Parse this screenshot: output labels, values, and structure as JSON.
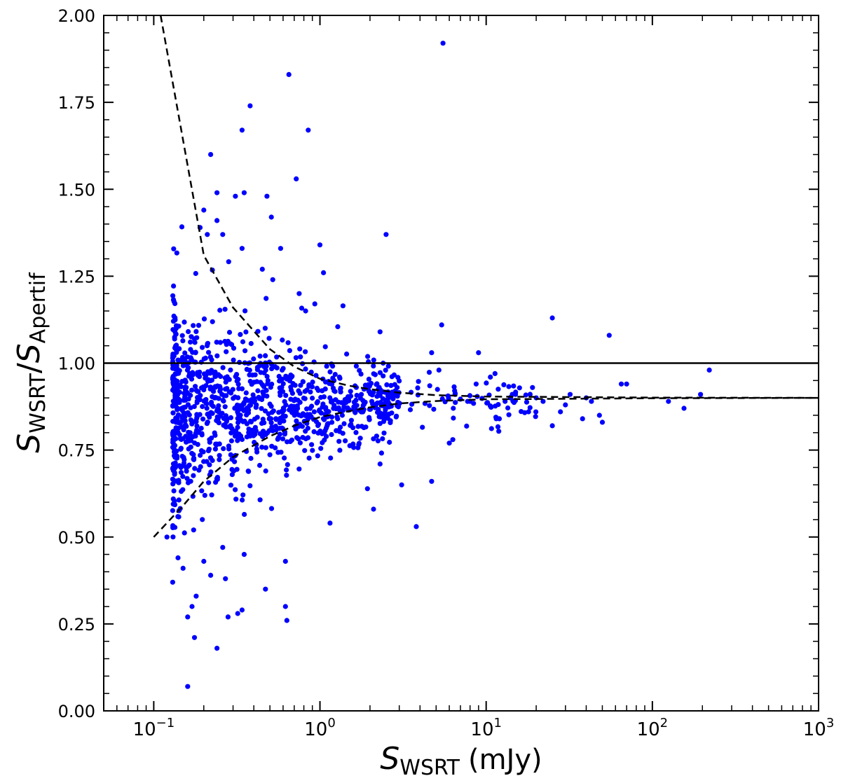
{
  "chart_data": {
    "type": "scatter",
    "title": "",
    "xscale": "log",
    "xlim": [
      0.05,
      1000
    ],
    "ylim": [
      0.0,
      2.0
    ],
    "grid": false,
    "xlabel": {
      "symbol": "S",
      "subscript": "WSRT",
      "unit": "(mJy)"
    },
    "ylabel": {
      "num_symbol": "S",
      "num_subscript": "WSRT",
      "den_symbol": "S",
      "den_subscript": "Apertif"
    },
    "x_ticks": [
      {
        "value": 0.1,
        "base": "10",
        "exp": "−1"
      },
      {
        "value": 1,
        "base": "10",
        "exp": "0"
      },
      {
        "value": 10,
        "base": "10",
        "exp": "1"
      },
      {
        "value": 100,
        "base": "10",
        "exp": "2"
      },
      {
        "value": 1000,
        "base": "10",
        "exp": "3"
      }
    ],
    "y_ticks": [
      "0.00",
      "0.25",
      "0.50",
      "0.75",
      "1.00",
      "1.25",
      "1.50",
      "1.75",
      "2.00"
    ],
    "marker_color": "#0000ff",
    "line_color": "#000000",
    "reference_line": {
      "y": 1.0
    },
    "envelope_upper": [
      [
        0.11,
        2.0
      ],
      [
        0.2,
        1.31
      ],
      [
        0.3,
        1.16
      ],
      [
        0.5,
        1.04
      ],
      [
        0.7,
        0.99
      ],
      [
        1.0,
        0.955
      ],
      [
        1.5,
        0.935
      ],
      [
        2.0,
        0.925
      ],
      [
        3.0,
        0.915
      ],
      [
        5.0,
        0.908
      ],
      [
        10,
        0.904
      ],
      [
        100,
        0.901
      ],
      [
        1000,
        0.9
      ]
    ],
    "envelope_lower": [
      [
        0.1,
        0.5
      ],
      [
        0.15,
        0.59
      ],
      [
        0.2,
        0.66
      ],
      [
        0.3,
        0.73
      ],
      [
        0.5,
        0.79
      ],
      [
        0.7,
        0.82
      ],
      [
        1.0,
        0.845
      ],
      [
        1.5,
        0.862
      ],
      [
        2.0,
        0.873
      ],
      [
        3.0,
        0.884
      ],
      [
        5.0,
        0.891
      ],
      [
        10,
        0.896
      ],
      [
        100,
        0.899
      ],
      [
        1000,
        0.9
      ]
    ],
    "outliers": [
      [
        0.16,
        0.07
      ],
      [
        0.24,
        0.18
      ],
      [
        0.17,
        0.3
      ],
      [
        0.16,
        0.27
      ],
      [
        0.28,
        0.27
      ],
      [
        0.32,
        0.28
      ],
      [
        0.34,
        0.29
      ],
      [
        0.62,
        0.3
      ],
      [
        0.13,
        0.37
      ],
      [
        0.15,
        0.41
      ],
      [
        0.18,
        0.33
      ],
      [
        0.22,
        0.39
      ],
      [
        0.27,
        0.38
      ],
      [
        0.47,
        0.35
      ],
      [
        0.2,
        0.43
      ],
      [
        0.26,
        0.47
      ],
      [
        0.35,
        0.45
      ],
      [
        0.62,
        0.43
      ],
      [
        0.12,
        0.5
      ],
      [
        0.14,
        0.44
      ],
      [
        1.15,
        0.54
      ],
      [
        2.1,
        0.58
      ],
      [
        2.3,
        0.71
      ],
      [
        3.1,
        0.65
      ],
      [
        3.8,
        0.53
      ],
      [
        4.7,
        0.66
      ],
      [
        6.0,
        0.77
      ],
      [
        6.3,
        0.78
      ],
      [
        11.5,
        0.84
      ],
      [
        12,
        0.84
      ],
      [
        18,
        0.86
      ],
      [
        25,
        0.82
      ],
      [
        28,
        0.86
      ],
      [
        38,
        0.84
      ],
      [
        48,
        0.85
      ],
      [
        50,
        0.83
      ],
      [
        125,
        0.89
      ],
      [
        155,
        0.87
      ],
      [
        0.65,
        1.83
      ],
      [
        5.5,
        1.92
      ],
      [
        0.38,
        1.74
      ],
      [
        0.34,
        1.67
      ],
      [
        0.85,
        1.67
      ],
      [
        0.22,
        1.6
      ],
      [
        0.72,
        1.53
      ],
      [
        0.24,
        1.49
      ],
      [
        0.35,
        1.49
      ],
      [
        0.31,
        1.48
      ],
      [
        0.48,
        1.48
      ],
      [
        0.51,
        1.42
      ],
      [
        0.2,
        1.44
      ],
      [
        0.24,
        1.41
      ],
      [
        0.19,
        1.39
      ],
      [
        0.21,
        1.37
      ],
      [
        0.26,
        1.37
      ],
      [
        0.34,
        1.33
      ],
      [
        0.58,
        1.33
      ],
      [
        1.0,
        1.34
      ],
      [
        1.05,
        1.26
      ],
      [
        2.5,
        1.37
      ],
      [
        0.45,
        1.27
      ],
      [
        0.52,
        1.24
      ],
      [
        0.82,
        1.15
      ],
      [
        0.75,
        1.2
      ],
      [
        2.3,
        1.09
      ],
      [
        5.4,
        1.11
      ],
      [
        25,
        1.13
      ],
      [
        55,
        1.08
      ],
      [
        9,
        1.03
      ],
      [
        4.7,
        1.03
      ],
      [
        5.2,
        0.98
      ],
      [
        2.4,
        1.0
      ],
      [
        11.3,
        0.97
      ],
      [
        10.6,
        0.96
      ],
      [
        8.7,
        0.94
      ],
      [
        14,
        0.9
      ],
      [
        15,
        0.91
      ],
      [
        19,
        0.93
      ],
      [
        32,
        0.91
      ],
      [
        65,
        0.94
      ],
      [
        70,
        0.94
      ],
      [
        195,
        0.91
      ],
      [
        220,
        0.98
      ],
      [
        6.5,
        0.91
      ],
      [
        8,
        0.89
      ],
      [
        13,
        0.89
      ],
      [
        20,
        0.9
      ],
      [
        22,
        0.89
      ],
      [
        30,
        0.88
      ],
      [
        40,
        0.9
      ],
      [
        43,
        0.89
      ]
    ]
  }
}
